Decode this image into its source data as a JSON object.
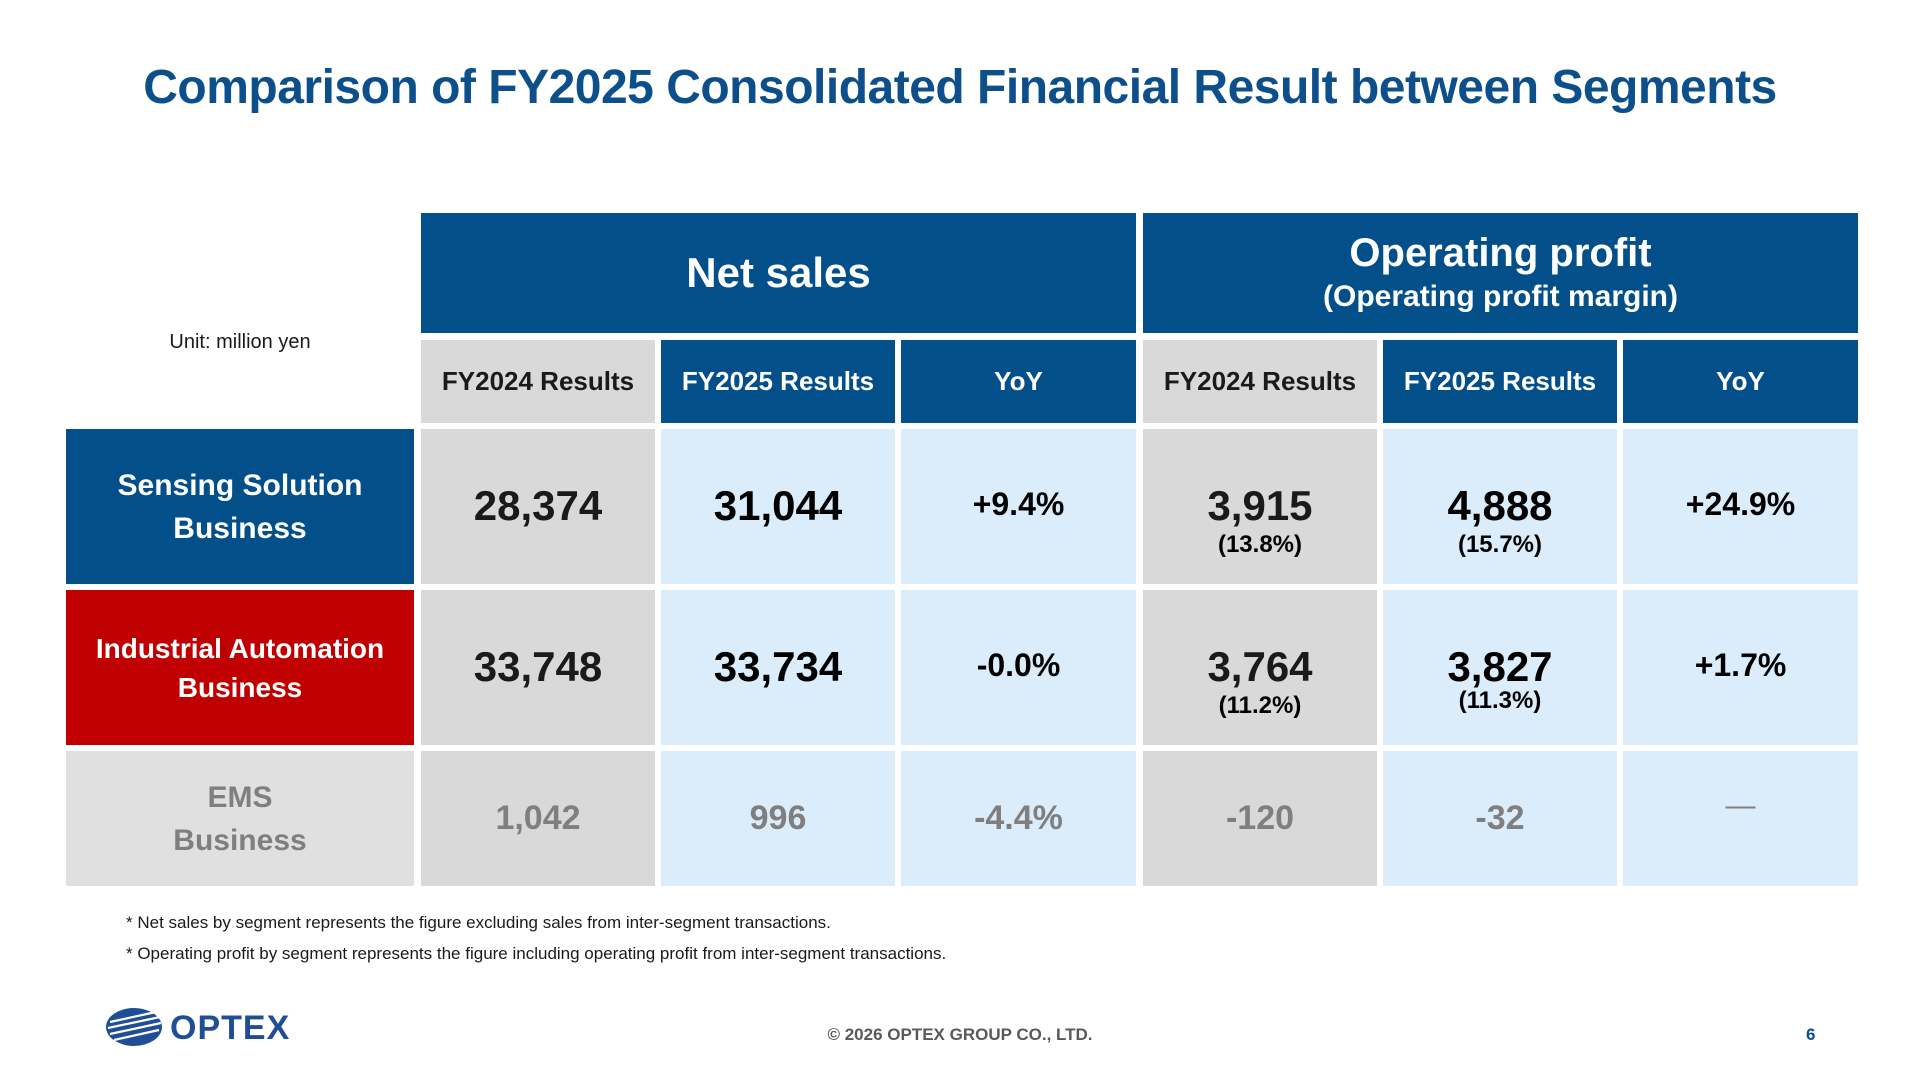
{
  "title": "Comparison of FY2025 Consolidated Financial Result between Segments",
  "unit": "Unit: million yen",
  "headers": {
    "net_sales": "Net sales",
    "op_profit": "Operating profit",
    "op_profit_sub": "(Operating profit margin)",
    "fy2024": "FY2024 Results",
    "fy2025": "FY2025 Results",
    "yoy": "YoY"
  },
  "rows": [
    {
      "label_line1": "Sensing Solution",
      "label_line2": "Business",
      "ns_fy2024": "28,374",
      "ns_fy2025": "31,044",
      "ns_yoy": "+9.4%",
      "op_fy2024": "3,915",
      "op_fy2024_margin": "(13.8%)",
      "op_fy2025": "4,888",
      "op_fy2025_margin": "(15.7%)",
      "op_yoy": "+24.9%"
    },
    {
      "label_line1": "Industrial Automation",
      "label_line2": "Business",
      "ns_fy2024": "33,748",
      "ns_fy2025": "33,734",
      "ns_yoy": "-0.0%",
      "op_fy2024": "3,764",
      "op_fy2024_margin": "(11.2%)",
      "op_fy2025": "3,827",
      "op_fy2025_margin": "(11.3%)",
      "op_yoy": "+1.7%"
    },
    {
      "label_line1": "EMS",
      "label_line2": "Business",
      "ns_fy2024": "1,042",
      "ns_fy2025": "996",
      "ns_yoy": "-4.4%",
      "op_fy2024": "-120",
      "op_fy2025": "-32",
      "op_yoy": "―"
    }
  ],
  "notes": [
    "* Net sales by segment represents the figure excluding sales from inter-segment transactions.",
    "* Operating profit by segment represents the figure including operating profit from inter-segment transactions."
  ],
  "footer": {
    "copyright": "© 2026 OPTEX GROUP CO., LTD.",
    "page_number": "6",
    "logo_text": "OPTEX"
  },
  "colors": {
    "title_blue": "#0d4f8b",
    "header_navy": "#034f8a",
    "segment_red": "#c00000",
    "cell_grey": "#d9d9d9",
    "cell_light_blue": "#dbedfa"
  }
}
